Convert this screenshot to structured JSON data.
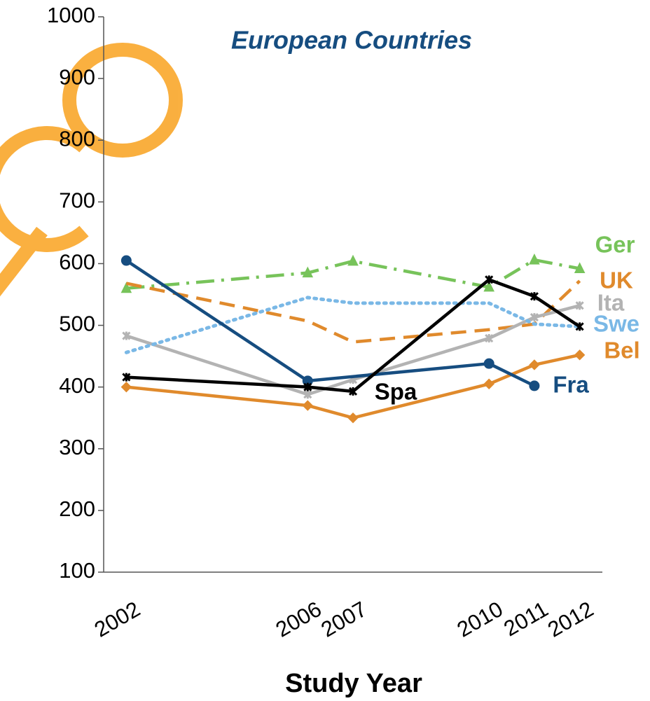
{
  "chart_data": {
    "type": "line",
    "title": "European Countries",
    "x_label": "Study Year",
    "xlim": [
      2001.5,
      2012.5
    ],
    "ylim": [
      100,
      1000
    ],
    "yticks": [
      100,
      200,
      300,
      400,
      500,
      600,
      700,
      800,
      900,
      1000
    ],
    "xtick_values": [
      2002,
      2006,
      2007,
      2010,
      2011,
      2012
    ],
    "series": [
      {
        "name": "Ger",
        "color": "#77c35a",
        "dash": "26 10 4 10",
        "marker": "triangle",
        "x": [
          2002,
          2006,
          2007,
          2010,
          2011,
          2012
        ],
        "values": [
          560,
          585,
          604,
          562,
          606,
          592
        ]
      },
      {
        "name": "UK",
        "color": "#e08a2c",
        "dash": "22 12",
        "marker": "none",
        "x": [
          2002,
          2006,
          2007,
          2010,
          2011,
          2012
        ],
        "values": [
          568,
          507,
          473,
          493,
          502,
          572
        ]
      },
      {
        "name": "Ita",
        "color": "#b3b3b3",
        "dash": "",
        "marker": "star",
        "x": [
          2002,
          2006,
          2007,
          2010,
          2011,
          2012
        ],
        "values": [
          483,
          388,
          412,
          479,
          513,
          532
        ]
      },
      {
        "name": "Swe",
        "color": "#7ab8e6",
        "dash": "3 7",
        "marker": "none",
        "x": [
          2002,
          2006,
          2007,
          2010,
          2011,
          2012
        ],
        "values": [
          456,
          545,
          536,
          536,
          502,
          498
        ]
      },
      {
        "name": "Bel",
        "color": "#e08a2c",
        "dash": "",
        "marker": "diamond",
        "x": [
          2002,
          2006,
          2007,
          2010,
          2011,
          2012
        ],
        "values": [
          400,
          370,
          350,
          405,
          436,
          452
        ]
      },
      {
        "name": "Fra",
        "color": "#164d80",
        "dash": "",
        "marker": "circle",
        "x": [
          2002,
          2006,
          2010,
          2011
        ],
        "values": [
          605,
          410,
          438,
          402
        ]
      },
      {
        "name": "Spa",
        "color": "#000000",
        "dash": "",
        "marker": "star",
        "x": [
          2002,
          2006,
          2007,
          2010,
          2011,
          2012
        ],
        "values": [
          416,
          400,
          393,
          574,
          547,
          498
        ]
      }
    ]
  }
}
